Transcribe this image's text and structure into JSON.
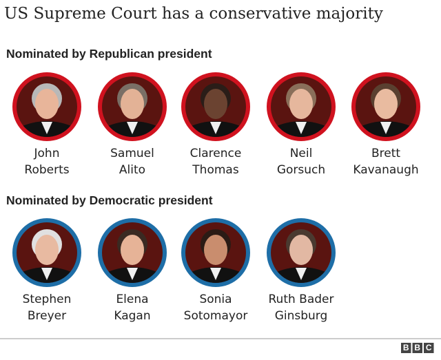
{
  "header": {
    "title": "US Supreme Court has a conservative majority"
  },
  "groups": [
    {
      "heading": "Nominated by Republican president",
      "color": "#d0121f",
      "justices": [
        {
          "first": "John",
          "last": "Roberts"
        },
        {
          "first": "Samuel",
          "last": "Alito"
        },
        {
          "first": "Clarence",
          "last": "Thomas"
        },
        {
          "first": "Neil",
          "last": "Gorsuch"
        },
        {
          "first": "Brett",
          "last": "Kavanaugh"
        }
      ]
    },
    {
      "heading": "Nominated by Democratic president",
      "color": "#1e6ea7",
      "justices": [
        {
          "first": "Stephen",
          "last": "Breyer"
        },
        {
          "first": "Elena",
          "last": "Kagan"
        },
        {
          "first": "Sonia",
          "last": "Sotomayor"
        },
        {
          "first": "Ruth Bader",
          "last": "Ginsburg"
        }
      ]
    }
  ],
  "footer": {
    "logo": [
      "B",
      "B",
      "C"
    ]
  }
}
